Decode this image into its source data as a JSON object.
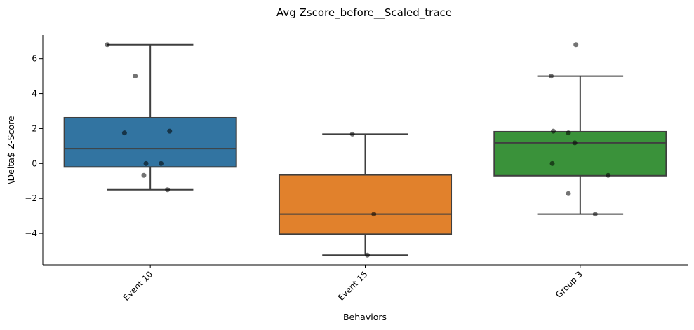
{
  "chart_data": {
    "type": "box",
    "title": "Avg Zscore_before__Scaled_trace",
    "xlabel": "Behaviors",
    "ylabel": "\\Delta$ Z-Score",
    "ylim": [
      -5.8,
      7.35
    ],
    "yticks": [
      -4,
      -2,
      0,
      2,
      4,
      6
    ],
    "ytick_labels": [
      "−4",
      "−2",
      "0",
      "2",
      "4",
      "6"
    ],
    "grid": false,
    "categories": [
      "Event 10",
      "Event 15",
      "Group 3"
    ],
    "colors": [
      "#3274a1",
      "#e1812c",
      "#3a923a"
    ],
    "boxes": [
      {
        "whisker_low": -1.5,
        "q1": -0.2,
        "median": 0.85,
        "q3": 2.62,
        "whisker_high": 6.8
      },
      {
        "whisker_low": -5.25,
        "q1": -4.05,
        "median": -2.9,
        "q3": -0.65,
        "whisker_high": 1.68
      },
      {
        "whisker_low": -2.9,
        "q1": -0.7,
        "median": 1.18,
        "q3": 1.82,
        "whisker_high": 5.0
      }
    ],
    "points": [
      {
        "category": "Event 10",
        "values": [
          6.8,
          5.0,
          1.75,
          1.85,
          0.0,
          0.0,
          -0.68,
          -1.5
        ]
      },
      {
        "category": "Event 15",
        "values": [
          1.68,
          -2.9,
          -5.25
        ]
      },
      {
        "category": "Group 3",
        "values": [
          6.8,
          5.0,
          1.85,
          1.75,
          1.18,
          0.0,
          -0.68,
          -1.72,
          -2.9
        ]
      }
    ]
  }
}
